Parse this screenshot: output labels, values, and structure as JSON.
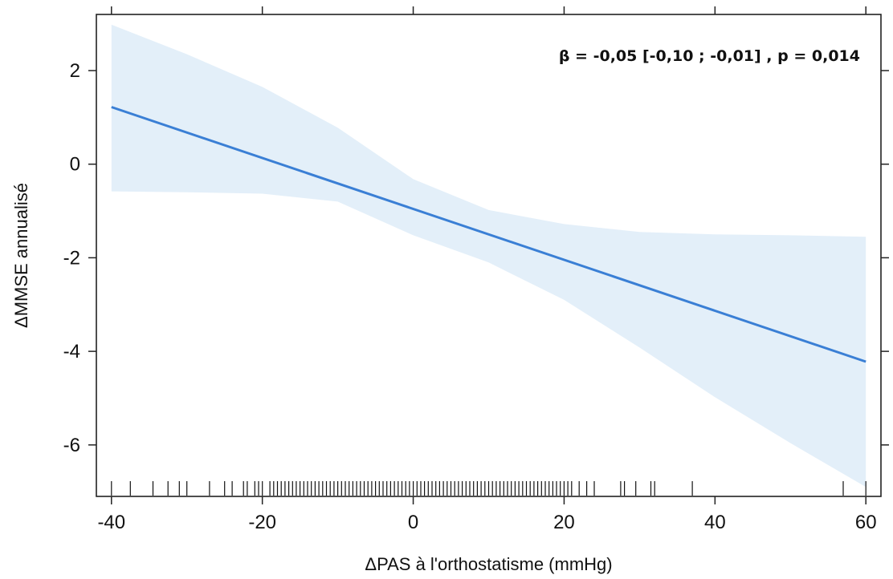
{
  "chart_data": {
    "type": "line",
    "title": "",
    "xlabel": "ΔPAS à l'orthostatisme (mmHg)",
    "ylabel": "ΔMMSE annualisé",
    "xlim": [
      -42,
      62
    ],
    "ylim": [
      -7.1,
      3.2
    ],
    "x_ticks": [
      -40,
      -20,
      0,
      20,
      40,
      60
    ],
    "x_tick_labels": [
      "-40",
      "-20",
      "0",
      "20",
      "40",
      "60"
    ],
    "y_ticks": [
      2,
      0,
      -2,
      -4,
      -6
    ],
    "y_tick_labels": [
      "2",
      "0",
      "-2",
      "-4",
      "-6"
    ],
    "grid": false,
    "annotation": "β = -0,05 [-0,10 ; -0,01] , p = 0,014",
    "colors": {
      "line": "#3a7fd5",
      "band": "#e3eff9",
      "axis": "#222222"
    },
    "series": [
      {
        "x": [
          -40,
          60
        ],
        "y": [
          1.22,
          -4.22
        ]
      }
    ],
    "confidence_band": {
      "x": [
        -40,
        -30,
        -20,
        -10,
        0,
        10,
        20,
        30,
        40,
        50,
        60
      ],
      "upper": [
        2.98,
        2.35,
        1.65,
        0.78,
        -0.32,
        -0.98,
        -1.28,
        -1.45,
        -1.5,
        -1.52,
        -1.55
      ],
      "lower": [
        -0.58,
        -0.6,
        -0.63,
        -0.8,
        -1.52,
        -2.1,
        -2.9,
        -3.92,
        -4.98,
        -5.96,
        -6.9
      ]
    },
    "rug_x": [
      -40,
      -37.5,
      -34.5,
      -32.5,
      -31,
      -30,
      -27,
      -25,
      -24,
      -22.5,
      -22,
      -21,
      -20.5,
      -20,
      -19,
      -18.5,
      -18,
      -17.5,
      -17,
      -16.5,
      -16,
      -15.5,
      -15,
      -14.5,
      -14,
      -13.5,
      -13,
      -12.5,
      -12,
      -11.5,
      -11,
      -10.5,
      -10,
      -9.5,
      -9,
      -8.5,
      -8,
      -7.5,
      -7,
      -6.5,
      -6,
      -5.5,
      -5,
      -4.5,
      -4,
      -3.5,
      -3,
      -2.5,
      -2,
      -1.5,
      -1,
      -0.5,
      0,
      0.5,
      1,
      1.5,
      2,
      2.5,
      3,
      3.5,
      4,
      4.5,
      5,
      5.5,
      6,
      6.5,
      7,
      7.5,
      8,
      8.5,
      9,
      9.5,
      10,
      10.5,
      11,
      11.5,
      12,
      12.5,
      13,
      13.5,
      14,
      14.5,
      15,
      15.5,
      16,
      16.5,
      17,
      17.5,
      18,
      18.5,
      19,
      19.5,
      20,
      20.5,
      21,
      22,
      23,
      24,
      27.5,
      28,
      29.5,
      31.5,
      32,
      37,
      57,
      60
    ]
  }
}
